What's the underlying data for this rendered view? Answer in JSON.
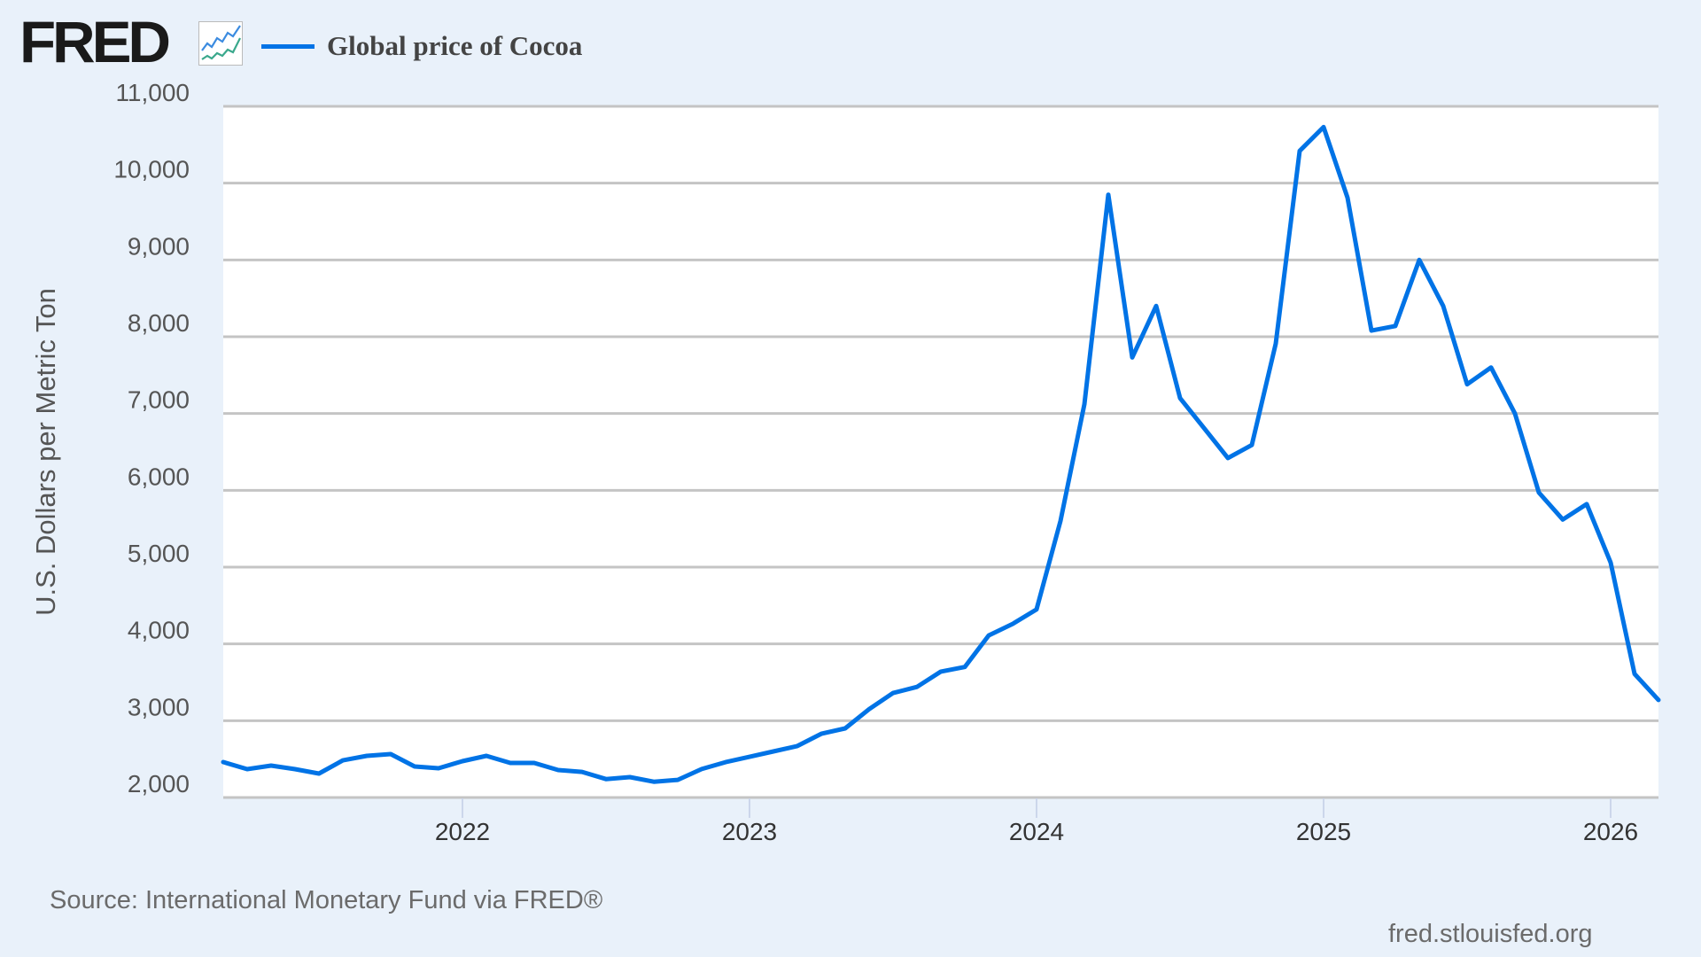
{
  "header": {
    "logo_text": "FRED",
    "logo_icon": "line-chart-icon",
    "legend": [
      {
        "label": "Global price of Cocoa",
        "color": "#0073e6"
      }
    ]
  },
  "footer": {
    "source": "Source: International Monetary Fund via FRED®",
    "site": "fred.stlouisfed.org"
  },
  "colors": {
    "background": "#e9f1fa",
    "plot_background": "#ffffff",
    "gridline": "#c4c4c4",
    "series": "#0073e6",
    "tick_mark": "#ccd6eb"
  },
  "chart_data": {
    "type": "line",
    "title": "Global price of Cocoa",
    "xlabel": "",
    "ylabel": "U.S. Dollars per Metric Ton",
    "ylim": [
      2000,
      11000
    ],
    "y_ticks": [
      2000,
      3000,
      4000,
      5000,
      6000,
      7000,
      8000,
      9000,
      10000,
      11000
    ],
    "y_tick_labels": [
      "2,000",
      "3,000",
      "4,000",
      "5,000",
      "6,000",
      "7,000",
      "8,000",
      "9,000",
      "10,000",
      "11,000"
    ],
    "x_ticks": [
      "2022",
      "2023",
      "2024",
      "2025",
      "2026"
    ],
    "x_range": [
      "2021-03",
      "2026-03"
    ],
    "grid": true,
    "legend_position": "top-left",
    "frequency": "monthly",
    "source": "International Monetary Fund via FRED®",
    "series": [
      {
        "name": "Global price of Cocoa",
        "color": "#0073e6",
        "x": [
          "2021-03",
          "2021-04",
          "2021-05",
          "2021-06",
          "2021-07",
          "2021-08",
          "2021-09",
          "2021-10",
          "2021-11",
          "2021-12",
          "2022-01",
          "2022-02",
          "2022-03",
          "2022-04",
          "2022-05",
          "2022-06",
          "2022-07",
          "2022-08",
          "2022-09",
          "2022-10",
          "2022-11",
          "2022-12",
          "2023-01",
          "2023-02",
          "2023-03",
          "2023-04",
          "2023-05",
          "2023-06",
          "2023-07",
          "2023-08",
          "2023-09",
          "2023-10",
          "2023-11",
          "2023-12",
          "2024-01",
          "2024-02",
          "2024-03",
          "2024-04",
          "2024-05",
          "2024-06",
          "2024-07",
          "2024-08",
          "2024-09",
          "2024-10",
          "2024-11",
          "2024-12",
          "2025-01",
          "2025-02",
          "2025-03",
          "2025-04",
          "2025-05",
          "2025-06",
          "2025-07",
          "2025-08",
          "2025-09",
          "2025-10",
          "2025-11",
          "2025-12",
          "2026-01",
          "2026-02",
          "2026-03"
        ],
        "values": [
          2461,
          2369,
          2415,
          2369,
          2311,
          2484,
          2542,
          2565,
          2404,
          2381,
          2473,
          2542,
          2450,
          2450,
          2358,
          2334,
          2240,
          2265,
          2205,
          2230,
          2370,
          2460,
          2530,
          2600,
          2670,
          2830,
          2900,
          3150,
          3360,
          3440,
          3640,
          3700,
          4110,
          4260,
          4450,
          5600,
          7120,
          9850,
          7730,
          8400,
          7200,
          6810,
          6420,
          6590,
          7910,
          10420,
          10730,
          9810,
          8080,
          8140,
          9000,
          8400,
          7380,
          7600,
          7000,
          5970,
          5620,
          5820,
          5060,
          3610,
          3270
        ]
      }
    ]
  }
}
